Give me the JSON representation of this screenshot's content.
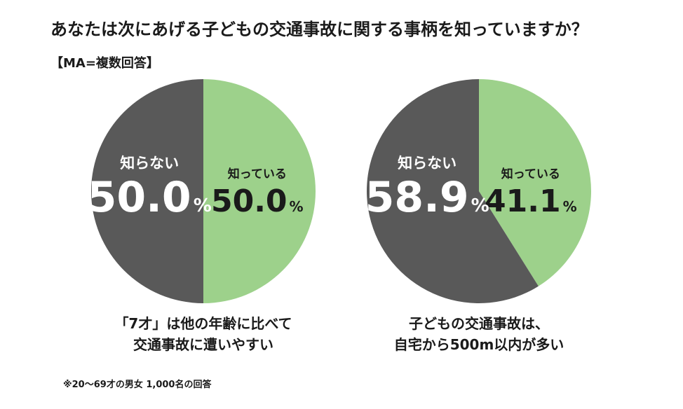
{
  "title": "あなたは次にあげる子どもの交通事故に関する事柄を知っていますか？",
  "subtitle": "【MA=複数回答】",
  "note": "※20～69才の男女 1,000名の回答",
  "chart_data": [
    {
      "type": "pie",
      "categories": [
        "知っている",
        "知らない"
      ],
      "values": [
        50.0,
        50.0
      ],
      "value_labels": [
        "50.0",
        "50.0"
      ],
      "unit": "%",
      "colors": [
        "#9dd18b",
        "#595959"
      ],
      "caption": [
        "「7才」は他の年齢に比べて",
        "交通事故に遭いやすい"
      ]
    },
    {
      "type": "pie",
      "categories": [
        "知っている",
        "知らない"
      ],
      "values": [
        41.1,
        58.9
      ],
      "value_labels": [
        "41.1",
        "58.9"
      ],
      "unit": "%",
      "colors": [
        "#9dd18b",
        "#595959"
      ],
      "caption": [
        "子どもの交通事故は、",
        "自宅から500m以内が多い"
      ]
    }
  ]
}
